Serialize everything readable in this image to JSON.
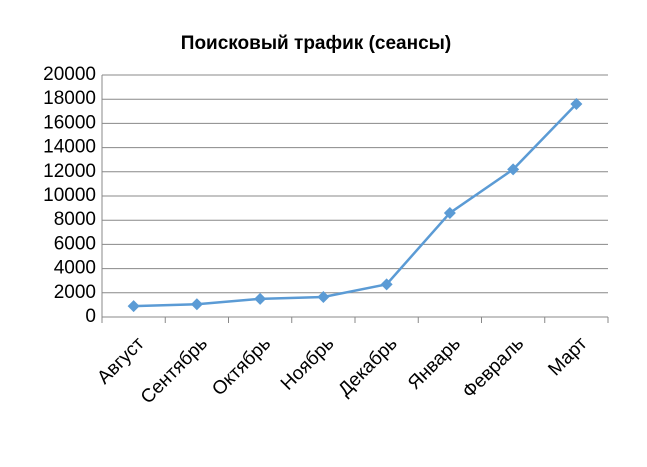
{
  "chart_data": {
    "type": "line",
    "title": "Поисковый трафик (сеансы)",
    "categories": [
      "Август",
      "Сентябрь",
      "Октябрь",
      "Ноябрь",
      "Декабрь",
      "Январь",
      "Февраль",
      "Март"
    ],
    "values": [
      900,
      1050,
      1500,
      1650,
      2700,
      8600,
      12200,
      17600
    ],
    "color": "#5b9bd5",
    "ylim": [
      0,
      20000
    ],
    "yticks": [
      0,
      2000,
      4000,
      6000,
      8000,
      10000,
      12000,
      14000,
      16000,
      18000,
      20000
    ],
    "grid": true
  }
}
